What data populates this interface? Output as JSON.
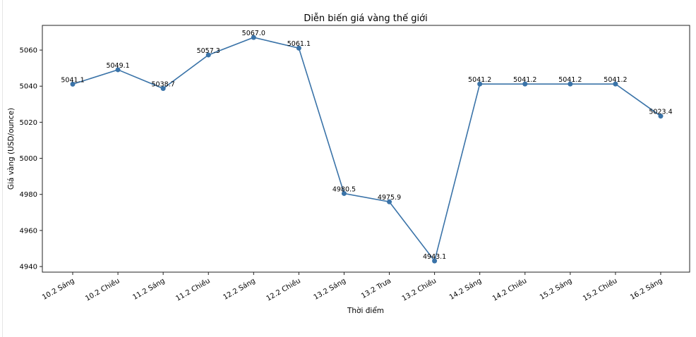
{
  "chart_data": {
    "type": "line",
    "title": "Diễn biến giá vàng thế giới",
    "xlabel": "Thời điểm",
    "ylabel": "Giá vàng (USD/ounce)",
    "categories": [
      "10.2 Sáng",
      "10.2 Chiều",
      "11.2 Sáng",
      "11.2 Chiều",
      "12.2 Sáng",
      "12.2 Chiều",
      "13.2 Sáng",
      "13.2 Trưa",
      "13.2 Chiều",
      "14.2 Sáng",
      "14.2 Chiều",
      "15.2 Sáng",
      "15.2 Chiều",
      "16.2 Sáng"
    ],
    "values": [
      5041.1,
      5049.1,
      5038.7,
      5057.3,
      5067.0,
      5061.1,
      4980.5,
      4975.9,
      4943.1,
      5041.2,
      5041.2,
      5041.2,
      5041.2,
      5023.4
    ],
    "data_labels": [
      "5041.1",
      "5049.1",
      "5038.7",
      "5057.3",
      "5067.0",
      "5061.1",
      "4980.5",
      "4975.9",
      "4943.1",
      "5041.2",
      "5041.2",
      "5041.2",
      "5041.2",
      "5023.4"
    ],
    "ylim": [
      4936.9,
      5073.7
    ],
    "yticks": [
      4940,
      4960,
      4980,
      5000,
      5020,
      5040,
      5060
    ],
    "grid": false,
    "line_color": "#3a73a8",
    "marker": "circle"
  }
}
